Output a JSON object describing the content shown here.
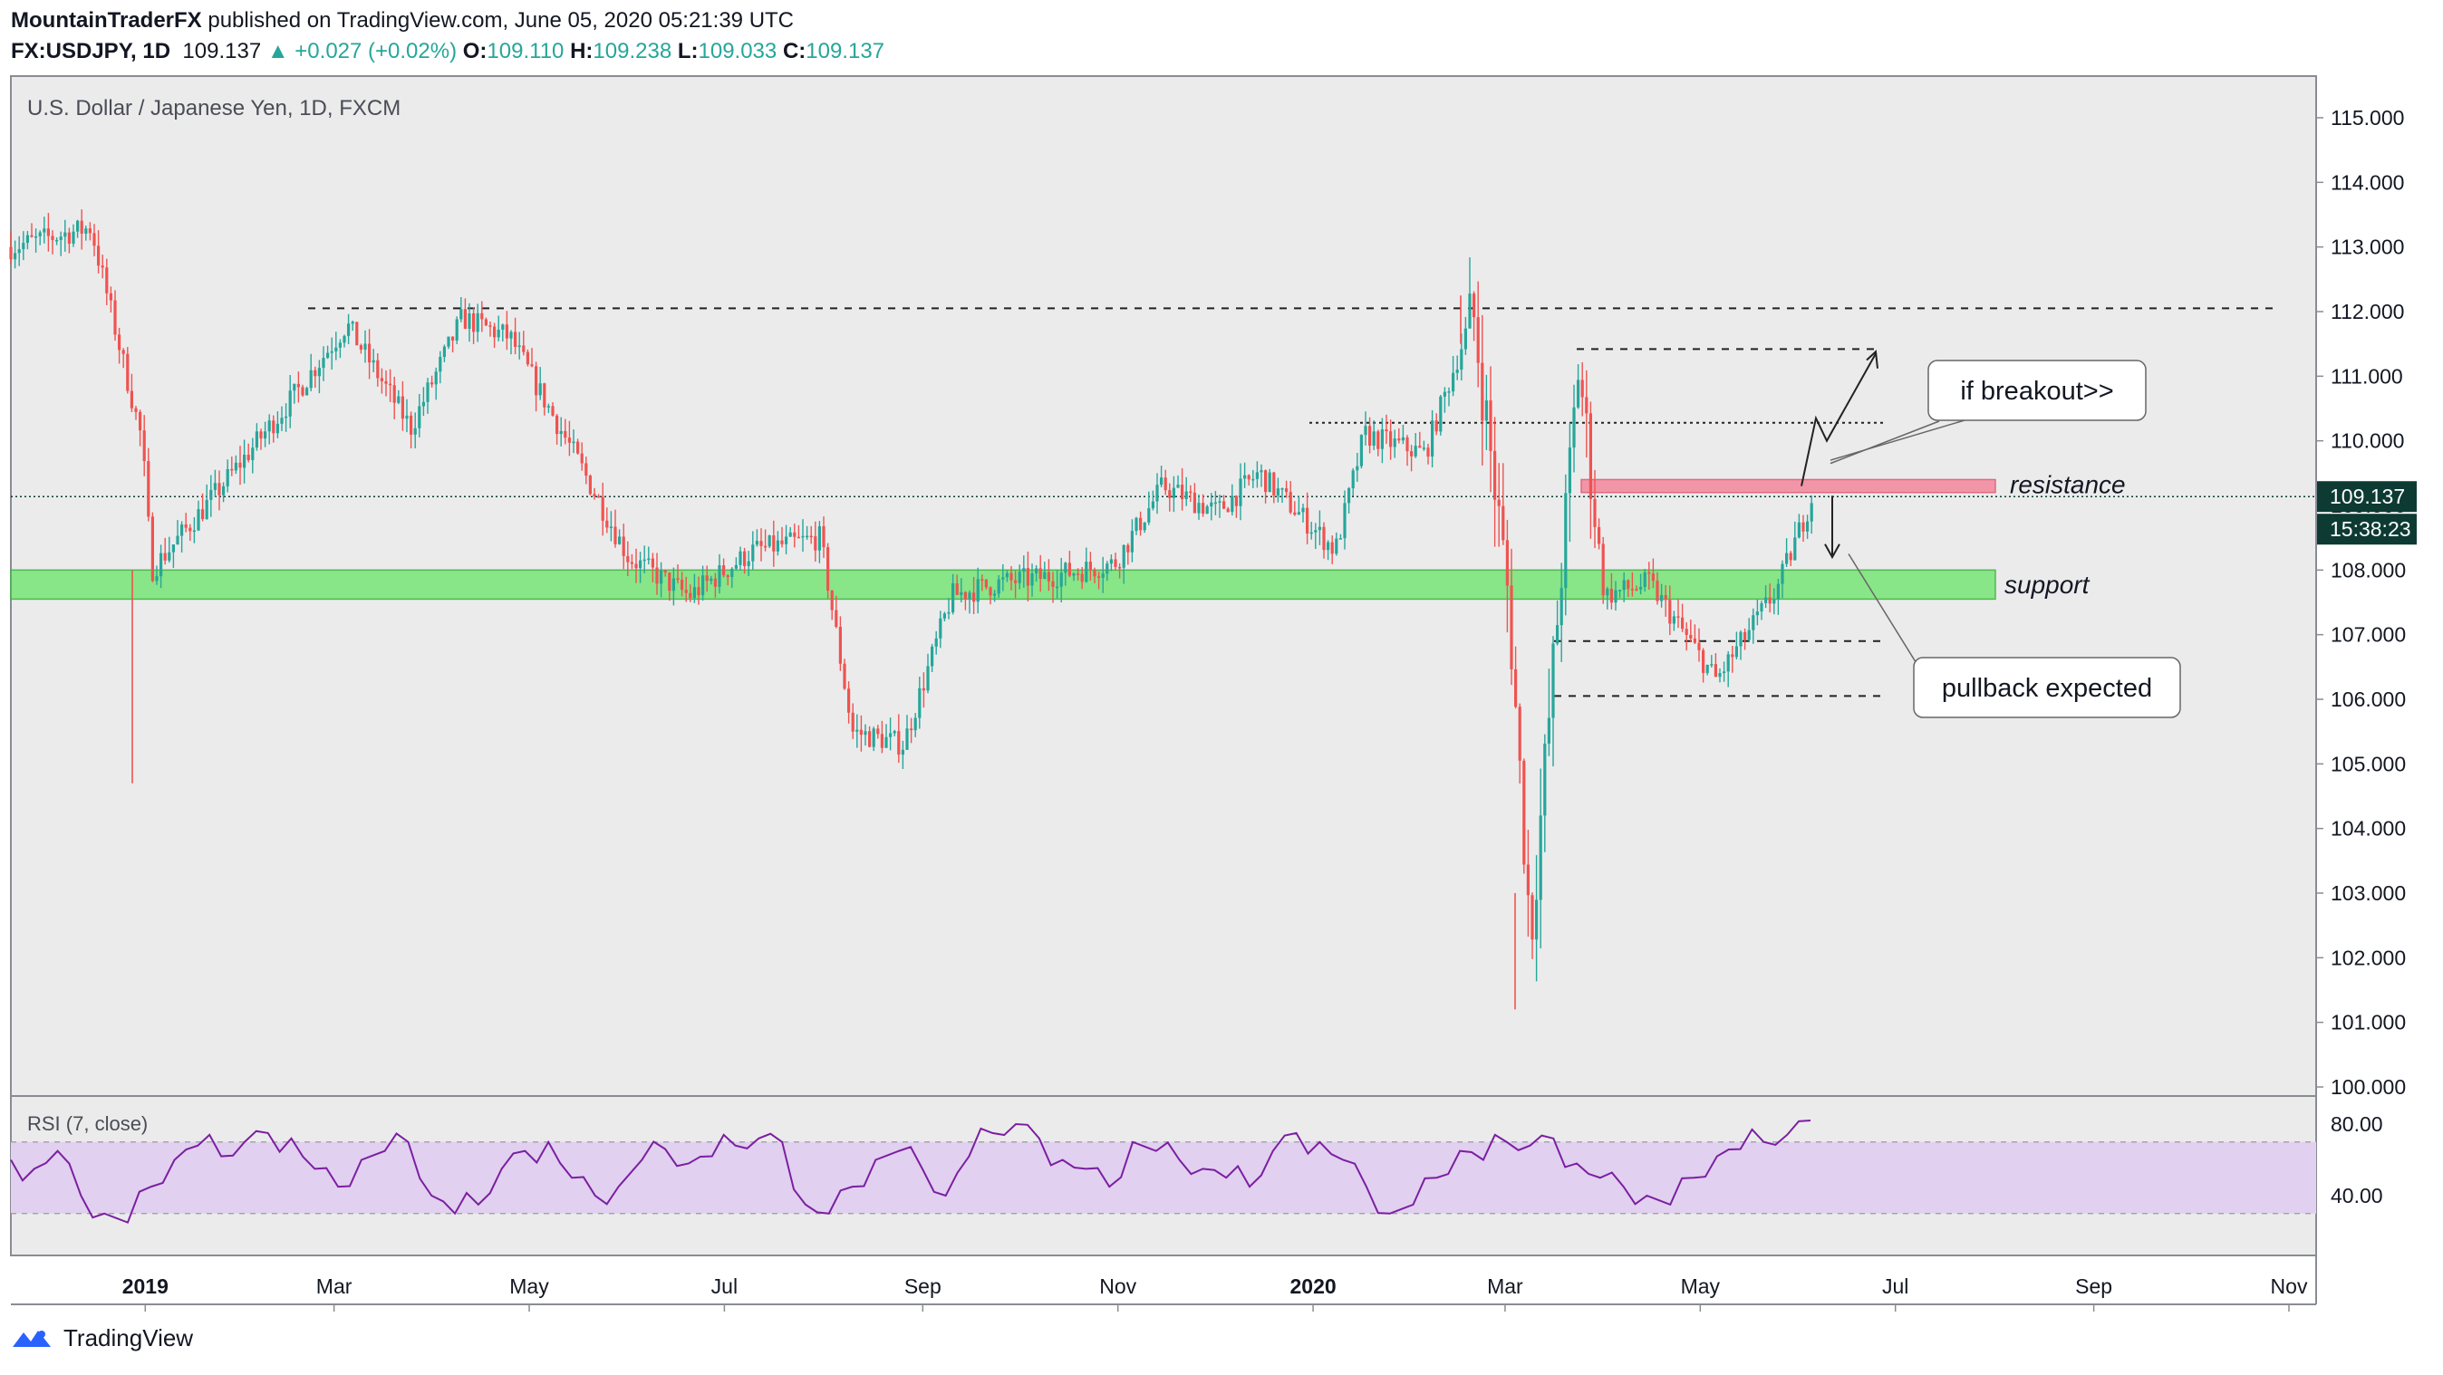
{
  "header": {
    "author": "MountainTraderFX",
    "published_text": "published on TradingView.com, June 05, 2020 05:21:39 UTC",
    "symbol": "FX:USDJPY, 1D",
    "last": "109.137",
    "change": "+0.027 (+0.02%)",
    "o_label": "O:",
    "o_value": "109.110",
    "h_label": "H:",
    "h_value": "109.238",
    "l_label": "L:",
    "l_value": "109.033",
    "c_label": "C:",
    "c_value": "109.137"
  },
  "footer": {
    "brand": "TradingView"
  },
  "colors": {
    "up": "#26a69a",
    "down": "#ef5350",
    "support": "#7ee57e",
    "resistance": "#f28da0",
    "rsi": "#7b1fa2",
    "rsi_band": "#e1d0ef",
    "price_tag": "#0d3b33"
  },
  "chart_data": [
    {
      "type": "candlestick",
      "title": "U.S. Dollar / Japanese Yen, 1D, FXCM",
      "ylim": [
        100.0,
        115.0
      ],
      "ytick_labels": [
        "100.000",
        "101.000",
        "102.000",
        "103.000",
        "104.000",
        "105.000",
        "106.000",
        "107.000",
        "108.000",
        "109.000",
        "110.000",
        "111.000",
        "112.000",
        "113.000",
        "114.000",
        "115.000"
      ],
      "xtick_labels": [
        "2019",
        "Mar",
        "May",
        "Jul",
        "Sep",
        "Nov",
        "2020",
        "Mar",
        "May",
        "Jul",
        "Sep",
        "Nov"
      ],
      "price_series": {
        "x": [
          "2018-11-20",
          "2018-12-15",
          "2018-12-31",
          "2019-01-03",
          "2019-01-20",
          "2019-02-15",
          "2019-03-05",
          "2019-03-25",
          "2019-04-10",
          "2019-04-25",
          "2019-05-15",
          "2019-06-01",
          "2019-06-20",
          "2019-07-10",
          "2019-07-31",
          "2019-08-10",
          "2019-08-26",
          "2019-09-10",
          "2019-09-25",
          "2019-10-10",
          "2019-10-31",
          "2019-11-15",
          "2019-12-02",
          "2019-12-15",
          "2020-01-08",
          "2020-01-17",
          "2020-02-05",
          "2020-02-20",
          "2020-03-02",
          "2020-03-09",
          "2020-03-24",
          "2020-04-01",
          "2020-04-15",
          "2020-05-06",
          "2020-05-25",
          "2020-06-05"
        ],
        "y": [
          113.0,
          113.3,
          110.0,
          108.0,
          109.0,
          110.6,
          111.8,
          110.2,
          111.9,
          111.6,
          109.8,
          108.2,
          107.6,
          108.3,
          108.5,
          105.5,
          105.3,
          107.6,
          107.8,
          107.9,
          108.1,
          109.3,
          108.9,
          109.5,
          108.3,
          110.1,
          109.8,
          112.0,
          107.6,
          102.3,
          111.2,
          107.6,
          107.8,
          106.3,
          107.7,
          109.137
        ]
      },
      "last_price_label": "109.137",
      "countdown_label": "15:38:23",
      "levels": [
        {
          "name": "support",
          "label": "support",
          "y_from": 107.55,
          "y_to": 108.0
        },
        {
          "name": "resistance",
          "label": "resistance",
          "y_from": 109.2,
          "y_to": 109.4
        }
      ],
      "annotations": [
        "if breakout>>",
        "pullback expected"
      ]
    },
    {
      "type": "line",
      "title": "RSI (7, close)",
      "ytick_labels": [
        "80.00",
        "40.00"
      ],
      "band": [
        30,
        70
      ],
      "series": [
        {
          "values": [
            60,
            55,
            65,
            40,
            30,
            25,
            45,
            60,
            68,
            62,
            70,
            75,
            72,
            55,
            45,
            60,
            65,
            70,
            40,
            30,
            35,
            55,
            65,
            70,
            50,
            40,
            45,
            60,
            66,
            58,
            62,
            68,
            72,
            70,
            35,
            30,
            45,
            60,
            65,
            55,
            40,
            62,
            75,
            80,
            72,
            60,
            55,
            45,
            70,
            65,
            60,
            55,
            50,
            45,
            65,
            75,
            70,
            60,
            45,
            30,
            35,
            50,
            65,
            60,
            70,
            68,
            72,
            58,
            50,
            45,
            40,
            35,
            50,
            62,
            66,
            70,
            74,
            82
          ]
        }
      ]
    }
  ]
}
